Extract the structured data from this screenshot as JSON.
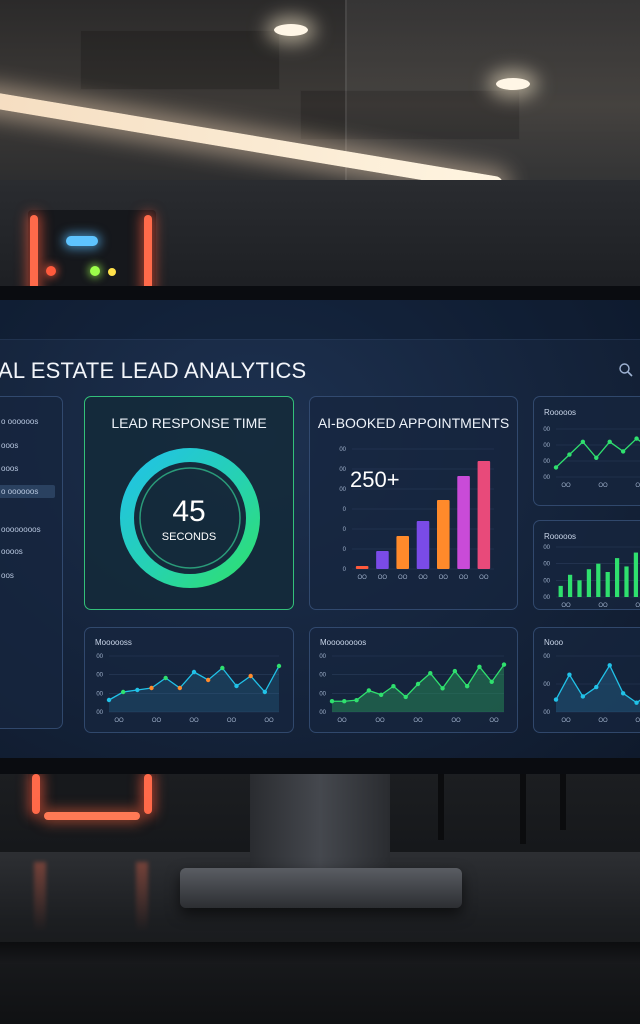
{
  "dashboard": {
    "title": "AL ESTATE LEAD ANALYTICS"
  },
  "sidebar": {
    "items": [
      {
        "label": "o oooooos"
      },
      {
        "label": "ooos"
      },
      {
        "label": "ooos"
      },
      {
        "label": "o oooooos",
        "selected": true
      },
      {
        "label": "oooooooos"
      },
      {
        "label": "oooos"
      },
      {
        "label": "oos"
      }
    ]
  },
  "response_card": {
    "title": "LEAD RESPONSE TIME",
    "value": "45",
    "unit": "SECONDS",
    "fraction_shown": 1.0,
    "ring_colors": [
      "#21c2e8",
      "#2fe06e"
    ]
  },
  "appointments_card": {
    "title": "AI-BOOKED APPOINTMENTS",
    "stat": "250+"
  },
  "small_cards": {
    "top_right_title": "Rooooos",
    "mid_right_title": "Rooooos",
    "bottom_left_title": "Moooooss",
    "bottom_mid_title": "Moooooooos",
    "bottom_right_title": "Nooo"
  },
  "colors": {
    "accent_green": "#33c07a",
    "accent_cyan": "#21c2e8",
    "bar_red": "#ff5a3c",
    "bar_purple": "#7a4be8",
    "bar_orange": "#ff8a2b"
  },
  "chart_data": [
    {
      "type": "bar",
      "id": "appointments",
      "categories": [
        "OO",
        "OO",
        "OO",
        "OO",
        "OO",
        "OO",
        "OO"
      ],
      "values": [
        1,
        6,
        11,
        16,
        23,
        31,
        36
      ],
      "bar_colors": [
        "#ff5a3c",
        "#7a4be8",
        "#ff8a2b",
        "#7a4be8",
        "#ff8a2b",
        "#c94bd8",
        "#e84a7a"
      ],
      "ytick_labels": [
        "0",
        "0",
        "0",
        "0",
        "00",
        "00",
        "00"
      ],
      "ylim": [
        0,
        40
      ]
    },
    {
      "type": "line",
      "id": "bottom-left",
      "x": [
        0,
        1,
        2,
        3,
        4,
        5,
        6,
        7,
        8,
        9,
        10,
        11,
        12
      ],
      "values": [
        12,
        20,
        22,
        24,
        34,
        24,
        40,
        32,
        44,
        26,
        36,
        20,
        46
      ],
      "point_colors": [
        "#21c2e8",
        "#2fe06e",
        "#21c2e8",
        "#ff8a2b",
        "#2fe06e",
        "#ff8a2b",
        "#21c2e8",
        "#ff8a2b",
        "#2fe06e",
        "#21c2e8",
        "#ff8a2b",
        "#21c2e8",
        "#2fe06e"
      ],
      "ytick_labels": [
        "00",
        "00",
        "00",
        "00"
      ],
      "xtick_labels": [
        "OO",
        "OO",
        "OO",
        "OO",
        "OO"
      ],
      "ylim": [
        0,
        56
      ]
    },
    {
      "type": "area",
      "id": "bottom-mid",
      "x": [
        0,
        1,
        2,
        3,
        4,
        5,
        6,
        7,
        8,
        9,
        10,
        11,
        12,
        13,
        14
      ],
      "values": [
        10,
        10,
        11,
        20,
        16,
        24,
        14,
        26,
        36,
        22,
        38,
        24,
        42,
        28,
        44
      ],
      "ytick_labels": [
        "00",
        "00",
        "00",
        "00"
      ],
      "xtick_labels": [
        "OO",
        "OO",
        "OO",
        "OO",
        "OO"
      ],
      "ylim": [
        0,
        52
      ]
    },
    {
      "type": "line",
      "id": "top-right",
      "x": [
        0,
        1,
        2,
        3,
        4,
        5,
        6,
        7
      ],
      "values": [
        6,
        14,
        22,
        12,
        22,
        16,
        24,
        18
      ],
      "ytick_labels": [
        "00",
        "00",
        "00",
        "00"
      ],
      "xtick_labels": [
        "OO",
        "OO",
        "OO"
      ],
      "ylim": [
        0,
        30
      ]
    },
    {
      "type": "bar",
      "id": "mid-right",
      "categories": [
        "",
        "",
        "",
        "",
        "",
        "",
        "",
        "",
        "",
        ""
      ],
      "values": [
        4,
        8,
        6,
        10,
        12,
        9,
        14,
        11,
        16,
        13
      ],
      "ytick_labels": [
        "00",
        "00",
        "00",
        "00"
      ],
      "xtick_labels": [
        "OO",
        "OO",
        "OO"
      ],
      "ylim": [
        0,
        18
      ]
    },
    {
      "type": "area",
      "id": "bottom-right",
      "x": [
        0,
        1,
        2,
        3,
        4,
        5,
        6,
        7
      ],
      "values": [
        8,
        24,
        10,
        16,
        30,
        12,
        6,
        12
      ],
      "ytick_labels": [
        "00",
        "00",
        "00"
      ],
      "xtick_labels": [
        "OO",
        "OO",
        "OO"
      ],
      "ylim": [
        0,
        36
      ]
    }
  ]
}
